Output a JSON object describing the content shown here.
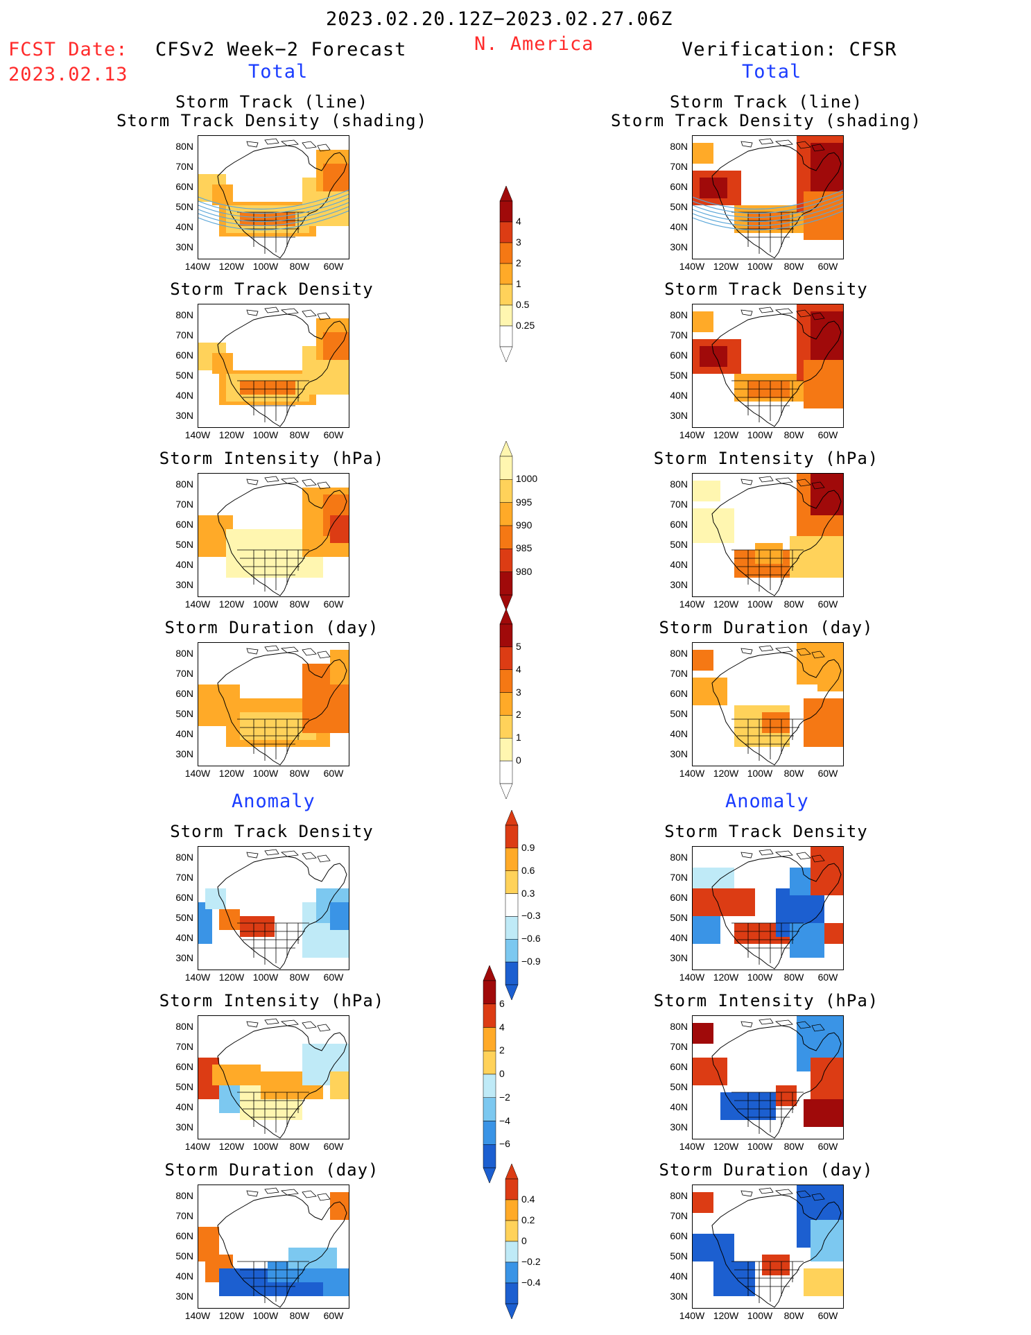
{
  "header": {
    "period": "2023.02.20.12Z−2023.02.27.06Z",
    "region": "N. America",
    "fcst_label": "FCST Date:",
    "fcst_date": "2023.02.13",
    "left_title": "CFSv2 Week−2 Forecast",
    "right_title": "Verification: CFSR",
    "total_label": "Total",
    "anomaly_label": "Anomaly"
  },
  "panel_titles": {
    "track_line": "Storm Track (line)",
    "track_shading": "Storm Track Density (shading)",
    "density": "Storm Track Density",
    "intensity": "Storm Intensity (hPa)",
    "duration": "Storm Duration (day)"
  },
  "lat_labels": [
    "80N",
    "70N",
    "60N",
    "50N",
    "40N",
    "30N"
  ],
  "lon_labels": [
    "140W",
    "120W",
    "100W",
    "80W",
    "60W"
  ],
  "colorbars": {
    "density": [
      "4",
      "3",
      "2",
      "1",
      "0.5",
      "0.25"
    ],
    "intensity": [
      "1000",
      "995",
      "990",
      "985",
      "980"
    ],
    "duration": [
      "5",
      "4",
      "3",
      "2",
      "1",
      "0"
    ],
    "density_anom": [
      "0.9",
      "0.6",
      "0.3",
      "−0.3",
      "−0.6",
      "−0.9"
    ],
    "intensity_anom": [
      "6",
      "4",
      "2",
      "0",
      "−2",
      "−4",
      "−6"
    ],
    "duration_anom": [
      "0.4",
      "0.2",
      "0",
      "−0.2",
      "−0.4"
    ]
  },
  "colors": {
    "warm": [
      "#fff6b0",
      "#ffd25a",
      "#ffaa28",
      "#f57814",
      "#dc3c14",
      "#a00a0a"
    ],
    "cool": [
      "#bfeaf7",
      "#7cc8f0",
      "#3a94e6",
      "#1c5fd0"
    ],
    "header_red": "#ff2a2a",
    "header_blue": "#1a3cff",
    "track_line": "#5aa6d8"
  }
}
